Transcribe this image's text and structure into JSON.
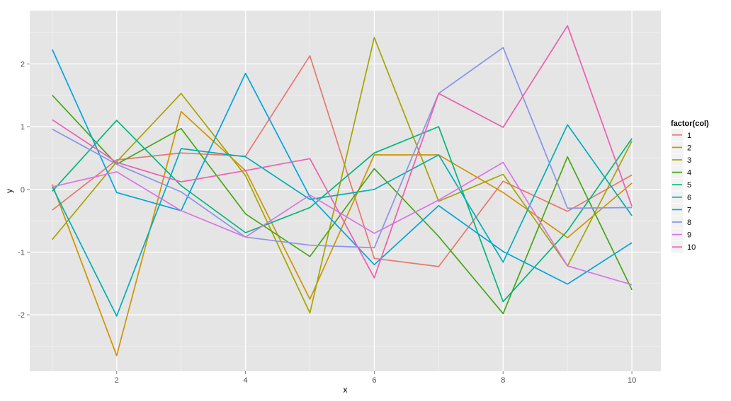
{
  "chart_data": {
    "type": "line",
    "xlabel": "x",
    "ylabel": "y",
    "xlim": [
      0.65,
      10.45
    ],
    "ylim": [
      -2.9,
      2.85
    ],
    "x_ticks": [
      2,
      4,
      6,
      8,
      10
    ],
    "y_ticks": [
      -2,
      -1,
      0,
      1,
      2
    ],
    "grid": true,
    "legend": {
      "title": "factor(col)",
      "position": "right"
    },
    "x": [
      1,
      2,
      3,
      4,
      5,
      6,
      7,
      8,
      9,
      10
    ],
    "series": [
      {
        "name": "1",
        "color": "#E7786E",
        "values": [
          -0.33,
          0.47,
          0.58,
          0.53,
          2.13,
          -1.1,
          -1.23,
          0.13,
          -0.35,
          0.23
        ]
      },
      {
        "name": "2",
        "color": "#CF9400",
        "values": [
          0.08,
          -2.65,
          1.24,
          0.3,
          -1.75,
          0.55,
          0.55,
          -0.05,
          -0.77,
          0.1
        ]
      },
      {
        "name": "3",
        "color": "#A3A500",
        "values": [
          -0.8,
          0.44,
          1.53,
          0.22,
          -1.97,
          2.42,
          -0.19,
          0.24,
          -1.22,
          0.77
        ]
      },
      {
        "name": "4",
        "color": "#44A715",
        "values": [
          1.5,
          0.4,
          0.97,
          -0.39,
          -1.07,
          0.33,
          -0.75,
          -1.98,
          0.52,
          -1.6
        ]
      },
      {
        "name": "5",
        "color": "#00B67D",
        "values": [
          -0.03,
          1.1,
          0.06,
          -0.69,
          -0.29,
          0.58,
          1.0,
          -1.79,
          -0.66,
          0.81
        ]
      },
      {
        "name": "6",
        "color": "#00AEB8",
        "values": [
          0.04,
          -2.02,
          0.65,
          0.52,
          -0.16,
          0.0,
          0.55,
          -1.16,
          1.03,
          -0.42
        ]
      },
      {
        "name": "7",
        "color": "#00A5DD",
        "values": [
          2.23,
          -0.05,
          -0.34,
          1.85,
          -0.12,
          -1.2,
          -0.26,
          -0.99,
          -1.51,
          -0.85
        ]
      },
      {
        "name": "8",
        "color": "#8B93E8",
        "values": [
          0.96,
          0.4,
          -0.04,
          -0.76,
          -0.89,
          -0.93,
          1.53,
          2.26,
          -0.3,
          -0.29
        ]
      },
      {
        "name": "9",
        "color": "#D973E8",
        "values": [
          0.04,
          0.28,
          -0.34,
          -0.76,
          -0.09,
          -0.7,
          -0.17,
          0.43,
          -1.22,
          -1.52
        ]
      },
      {
        "name": "10",
        "color": "#EA60B0",
        "values": [
          1.11,
          0.43,
          0.12,
          0.3,
          0.49,
          -1.41,
          1.53,
          0.99,
          2.61,
          -0.27
        ]
      }
    ]
  }
}
